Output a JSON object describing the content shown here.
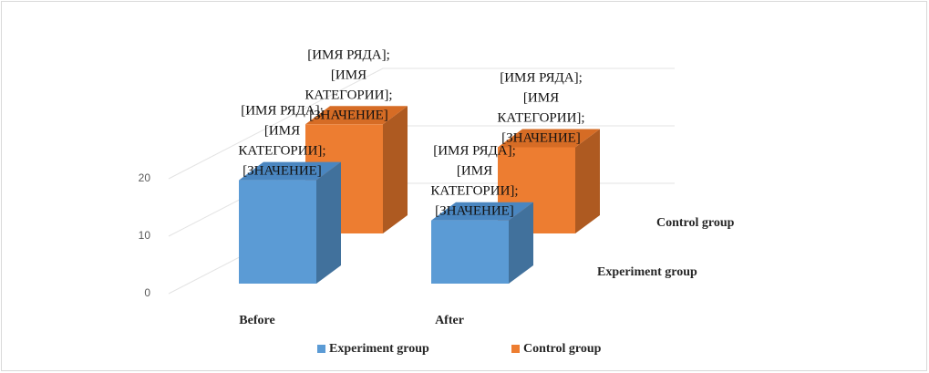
{
  "chart_data": {
    "type": "bar3d",
    "categories": [
      "Before",
      "After"
    ],
    "series": [
      {
        "name": "Experiment group",
        "color": "#5b9bd5",
        "side": "#41719c",
        "top": "#4a86c0",
        "values": [
          18,
          11
        ],
        "value_labels": [
          "[ИМЯ РЯДА]; [ИМЯ КАТЕГОРИИ]; [ЗНАЧЕНИЕ]",
          "[ИМЯ РЯДА]; [ИМЯ КАТЕГОРИИ]; [ЗНАЧЕНИЕ]"
        ]
      },
      {
        "name": "Control group",
        "color": "#ed7d31",
        "side": "#ae5a21",
        "top": "#d66c25",
        "values": [
          19,
          15
        ],
        "value_labels": [
          "[ИМЯ РЯДА]; [ИМЯ КАТЕГОРИИ]; [ЗНАЧЕНИЕ]",
          "[ИМЯ РЯДА]; [ИМЯ КАТЕГОРИИ]; [ЗНАЧЕНИЕ]"
        ]
      }
    ],
    "ylim": [
      0,
      30
    ],
    "yticks": [
      0,
      10,
      20
    ],
    "grid": true,
    "legend": "bottom"
  }
}
